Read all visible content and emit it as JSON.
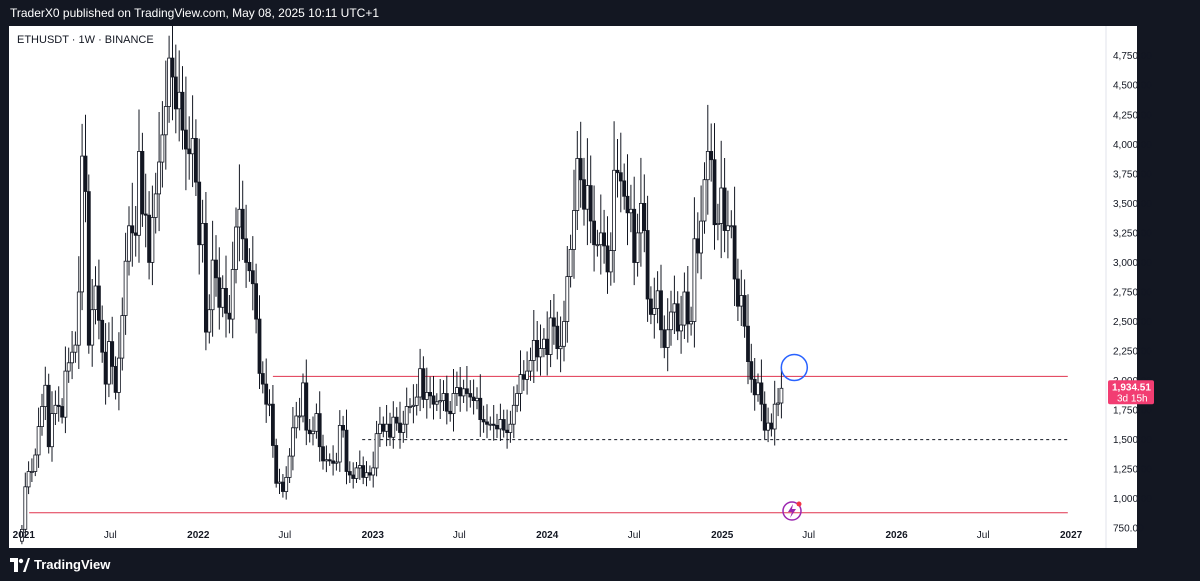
{
  "header": {
    "published": "TraderX0 published on TradingView.com, May 08, 2025 10:11 UTC+1"
  },
  "footer": {
    "brand": "TradingView",
    "logo_icon": "tradingview-logo-icon"
  },
  "colors": {
    "bull": "#131722",
    "bear": "#131722",
    "hline": "#e0344f",
    "dashed": "#131722",
    "circle": "#2962ff",
    "tag": "#f23d72",
    "bolt": "#9c27b0"
  },
  "chart_data": {
    "type": "candlestick",
    "symbol": "ETHUSDT · 1W · BINANCE",
    "ylim": [
      650,
      4900
    ],
    "y_ticks": [
      750,
      1000,
      1250,
      1500,
      1750,
      2000,
      2250,
      2500,
      2750,
      3000,
      3250,
      3500,
      3750,
      4000,
      4250,
      4500,
      4750
    ],
    "y_tick_labels": [
      "750.00",
      "1,000.00",
      "1,250.00",
      "1,500.00",
      "1,750.00",
      "2,000.00",
      "2,250.00",
      "2,500.00",
      "2,750.00",
      "3,000.00",
      "3,250.00",
      "3,500.00",
      "3,750.00",
      "4,000.00",
      "4,250.00",
      "4,500.00",
      "4,750.00"
    ],
    "x_ticks": [
      {
        "label": "2021",
        "date": "2021-01-01",
        "year": true
      },
      {
        "label": "Jul",
        "date": "2021-07-01",
        "year": false
      },
      {
        "label": "2022",
        "date": "2022-01-01",
        "year": true
      },
      {
        "label": "Jul",
        "date": "2022-07-01",
        "year": false
      },
      {
        "label": "2023",
        "date": "2023-01-01",
        "year": true
      },
      {
        "label": "Jul",
        "date": "2023-07-01",
        "year": false
      },
      {
        "label": "2024",
        "date": "2024-01-01",
        "year": true
      },
      {
        "label": "Jul",
        "date": "2024-07-01",
        "year": false
      },
      {
        "label": "2025",
        "date": "2025-01-01",
        "year": true
      },
      {
        "label": "Jul",
        "date": "2025-07-01",
        "year": false
      },
      {
        "label": "2026",
        "date": "2026-01-01",
        "year": true
      },
      {
        "label": "Jul",
        "date": "2026-07-01",
        "year": false
      },
      {
        "label": "2027",
        "date": "2027-01-01",
        "year": true
      }
    ],
    "x_range": [
      "2020-12-01",
      "2027-03-15"
    ],
    "current_price": 1934.51,
    "current_price_label": "1,934.51",
    "countdown": "3d 15h",
    "horizontal_lines": [
      {
        "name": "resistance",
        "y": 2035,
        "style": "solid",
        "x_start": "2022-06-06",
        "x_end": "2026-12-25"
      },
      {
        "name": "support-dashed",
        "y": 1500,
        "style": "dashed",
        "x_start": "2022-12-10",
        "x_end": "2026-12-25"
      },
      {
        "name": "bottom-support",
        "y": 880,
        "style": "solid",
        "x_start": "2021-01-12",
        "x_end": "2026-12-25"
      }
    ],
    "annotation_circle": {
      "date": "2025-06-01",
      "y": 2110
    },
    "closes": [
      [
        "2020-12-21",
        640
      ],
      [
        "2020-12-28",
        740
      ],
      [
        "2021-01-04",
        1100
      ],
      [
        "2021-01-11",
        1230
      ],
      [
        "2021-01-18",
        1230
      ],
      [
        "2021-01-25",
        1370
      ],
      [
        "2021-02-01",
        1610
      ],
      [
        "2021-02-08",
        1780
      ],
      [
        "2021-02-15",
        1960
      ],
      [
        "2021-02-22",
        1440
      ],
      [
        "2021-03-01",
        1720
      ],
      [
        "2021-03-08",
        1790
      ],
      [
        "2021-03-15",
        1780
      ],
      [
        "2021-03-22",
        1690
      ],
      [
        "2021-03-29",
        2080
      ],
      [
        "2021-04-05",
        2150
      ],
      [
        "2021-04-12",
        2240
      ],
      [
        "2021-04-19",
        2300
      ],
      [
        "2021-04-26",
        2750
      ],
      [
        "2021-05-03",
        3900
      ],
      [
        "2021-05-10",
        3600
      ],
      [
        "2021-05-17",
        2300
      ],
      [
        "2021-05-24",
        2600
      ],
      [
        "2021-05-31",
        2800
      ],
      [
        "2021-06-07",
        2510
      ],
      [
        "2021-06-14",
        2240
      ],
      [
        "2021-06-21",
        1970
      ],
      [
        "2021-06-28",
        2330
      ],
      [
        "2021-07-05",
        2120
      ],
      [
        "2021-07-12",
        1900
      ],
      [
        "2021-07-19",
        2190
      ],
      [
        "2021-07-26",
        2550
      ],
      [
        "2021-08-02",
        3010
      ],
      [
        "2021-08-09",
        3310
      ],
      [
        "2021-08-16",
        3250
      ],
      [
        "2021-08-23",
        3230
      ],
      [
        "2021-08-30",
        3940
      ],
      [
        "2021-09-06",
        3410
      ],
      [
        "2021-09-13",
        3400
      ],
      [
        "2021-09-20",
        3000
      ],
      [
        "2021-09-27",
        3380
      ],
      [
        "2021-10-04",
        3580
      ],
      [
        "2021-10-11",
        3850
      ],
      [
        "2021-10-18",
        4080
      ],
      [
        "2021-10-25",
        4320
      ],
      [
        "2021-11-01",
        4730
      ],
      [
        "2021-11-08",
        4570
      ],
      [
        "2021-11-15",
        4300
      ],
      [
        "2021-11-22",
        4440
      ],
      [
        "2021-11-29",
        4120
      ],
      [
        "2021-12-06",
        3960
      ],
      [
        "2021-12-13",
        3920
      ],
      [
        "2021-12-20",
        4050
      ],
      [
        "2021-12-27",
        3680
      ],
      [
        "2022-01-03",
        3150
      ],
      [
        "2022-01-10",
        3330
      ],
      [
        "2022-01-17",
        2410
      ],
      [
        "2022-01-24",
        2600
      ],
      [
        "2022-01-31",
        3020
      ],
      [
        "2022-02-07",
        2870
      ],
      [
        "2022-02-14",
        2620
      ],
      [
        "2022-02-21",
        2780
      ],
      [
        "2022-02-28",
        2570
      ],
      [
        "2022-03-07",
        2520
      ],
      [
        "2022-03-14",
        2940
      ],
      [
        "2022-03-21",
        3300
      ],
      [
        "2022-03-28",
        3450
      ],
      [
        "2022-04-04",
        3200
      ],
      [
        "2022-04-11",
        3000
      ],
      [
        "2022-04-18",
        2930
      ],
      [
        "2022-04-25",
        2820
      ],
      [
        "2022-05-02",
        2520
      ],
      [
        "2022-05-09",
        2060
      ],
      [
        "2022-05-16",
        1970
      ],
      [
        "2022-05-23",
        1800
      ],
      [
        "2022-05-30",
        1800
      ],
      [
        "2022-06-06",
        1450
      ],
      [
        "2022-06-13",
        1130
      ],
      [
        "2022-06-20",
        1140
      ],
      [
        "2022-06-27",
        1060
      ],
      [
        "2022-07-04",
        1180
      ],
      [
        "2022-07-11",
        1360
      ],
      [
        "2022-07-18",
        1600
      ],
      [
        "2022-07-25",
        1700
      ],
      [
        "2022-08-01",
        1700
      ],
      [
        "2022-08-08",
        1980
      ],
      [
        "2022-08-15",
        1580
      ],
      [
        "2022-08-22",
        1550
      ],
      [
        "2022-08-29",
        1570
      ],
      [
        "2022-09-05",
        1720
      ],
      [
        "2022-09-12",
        1440
      ],
      [
        "2022-09-19",
        1320
      ],
      [
        "2022-09-26",
        1330
      ],
      [
        "2022-10-03",
        1320
      ],
      [
        "2022-10-10",
        1300
      ],
      [
        "2022-10-17",
        1310
      ],
      [
        "2022-10-24",
        1620
      ],
      [
        "2022-10-31",
        1580
      ],
      [
        "2022-11-07",
        1230
      ],
      [
        "2022-11-14",
        1200
      ],
      [
        "2022-11-21",
        1170
      ],
      [
        "2022-11-28",
        1260
      ],
      [
        "2022-12-05",
        1280
      ],
      [
        "2022-12-12",
        1180
      ],
      [
        "2022-12-19",
        1220
      ],
      [
        "2022-12-26",
        1200
      ],
      [
        "2023-01-02",
        1260
      ],
      [
        "2023-01-09",
        1550
      ],
      [
        "2023-01-16",
        1630
      ],
      [
        "2023-01-23",
        1570
      ],
      [
        "2023-01-30",
        1630
      ],
      [
        "2023-02-06",
        1520
      ],
      [
        "2023-02-13",
        1690
      ],
      [
        "2023-02-20",
        1640
      ],
      [
        "2023-02-27",
        1560
      ],
      [
        "2023-03-06",
        1630
      ],
      [
        "2023-03-13",
        1780
      ],
      [
        "2023-03-20",
        1780
      ],
      [
        "2023-03-27",
        1790
      ],
      [
        "2023-04-03",
        1860
      ],
      [
        "2023-04-10",
        2100
      ],
      [
        "2023-04-17",
        1840
      ],
      [
        "2023-04-24",
        1900
      ],
      [
        "2023-05-01",
        1870
      ],
      [
        "2023-05-08",
        1800
      ],
      [
        "2023-05-15",
        1820
      ],
      [
        "2023-05-22",
        1830
      ],
      [
        "2023-05-29",
        1890
      ],
      [
        "2023-06-05",
        1740
      ],
      [
        "2023-06-12",
        1720
      ],
      [
        "2023-06-19",
        1890
      ],
      [
        "2023-06-26",
        1940
      ],
      [
        "2023-07-03",
        1870
      ],
      [
        "2023-07-10",
        1930
      ],
      [
        "2023-07-17",
        1890
      ],
      [
        "2023-07-24",
        1860
      ],
      [
        "2023-07-31",
        1830
      ],
      [
        "2023-08-07",
        1850
      ],
      [
        "2023-08-14",
        1670
      ],
      [
        "2023-08-21",
        1650
      ],
      [
        "2023-08-28",
        1630
      ],
      [
        "2023-09-04",
        1630
      ],
      [
        "2023-09-11",
        1620
      ],
      [
        "2023-09-18",
        1590
      ],
      [
        "2023-09-25",
        1670
      ],
      [
        "2023-10-02",
        1580
      ],
      [
        "2023-10-09",
        1560
      ],
      [
        "2023-10-16",
        1630
      ],
      [
        "2023-10-23",
        1790
      ],
      [
        "2023-10-30",
        1890
      ],
      [
        "2023-11-06",
        2050
      ],
      [
        "2023-11-13",
        2010
      ],
      [
        "2023-11-20",
        2080
      ],
      [
        "2023-11-27",
        2170
      ],
      [
        "2023-12-04",
        2340
      ],
      [
        "2023-12-11",
        2200
      ],
      [
        "2023-12-18",
        2270
      ],
      [
        "2023-12-25",
        2350
      ],
      [
        "2024-01-01",
        2220
      ],
      [
        "2024-01-08",
        2530
      ],
      [
        "2024-01-15",
        2460
      ],
      [
        "2024-01-22",
        2270
      ],
      [
        "2024-01-29",
        2290
      ],
      [
        "2024-02-05",
        2500
      ],
      [
        "2024-02-12",
        2880
      ],
      [
        "2024-02-19",
        3110
      ],
      [
        "2024-02-26",
        3440
      ],
      [
        "2024-03-04",
        3880
      ],
      [
        "2024-03-11",
        3700
      ],
      [
        "2024-03-18",
        3450
      ],
      [
        "2024-03-25",
        3650
      ],
      [
        "2024-04-01",
        3350
      ],
      [
        "2024-04-08",
        3150
      ],
      [
        "2024-04-15",
        3150
      ],
      [
        "2024-04-22",
        3250
      ],
      [
        "2024-04-29",
        3140
      ],
      [
        "2024-05-06",
        2920
      ],
      [
        "2024-05-13",
        3100
      ],
      [
        "2024-05-20",
        3780
      ],
      [
        "2024-05-27",
        3760
      ],
      [
        "2024-06-03",
        3690
      ],
      [
        "2024-06-10",
        3560
      ],
      [
        "2024-06-17",
        3420
      ],
      [
        "2024-06-24",
        3450
      ],
      [
        "2024-07-01",
        3000
      ],
      [
        "2024-07-08",
        3250
      ],
      [
        "2024-07-15",
        3500
      ],
      [
        "2024-07-22",
        3270
      ],
      [
        "2024-07-29",
        2690
      ],
      [
        "2024-08-05",
        2560
      ],
      [
        "2024-08-12",
        2610
      ],
      [
        "2024-08-19",
        2760
      ],
      [
        "2024-08-26",
        2430
      ],
      [
        "2024-09-02",
        2280
      ],
      [
        "2024-09-09",
        2430
      ],
      [
        "2024-09-16",
        2580
      ],
      [
        "2024-09-23",
        2650
      ],
      [
        "2024-09-30",
        2420
      ],
      [
        "2024-10-07",
        2470
      ],
      [
        "2024-10-14",
        2750
      ],
      [
        "2024-10-21",
        2480
      ],
      [
        "2024-10-28",
        2500
      ],
      [
        "2024-11-04",
        3200
      ],
      [
        "2024-11-11",
        3080
      ],
      [
        "2024-11-18",
        3350
      ],
      [
        "2024-11-25",
        3700
      ],
      [
        "2024-12-02",
        3940
      ],
      [
        "2024-12-09",
        3870
      ],
      [
        "2024-12-16",
        3320
      ],
      [
        "2024-12-23",
        3330
      ],
      [
        "2024-12-30",
        3630
      ],
      [
        "2025-01-06",
        3270
      ],
      [
        "2025-01-13",
        3310
      ],
      [
        "2025-01-20",
        3310
      ],
      [
        "2025-01-27",
        2860
      ],
      [
        "2025-02-03",
        2630
      ],
      [
        "2025-02-10",
        2720
      ],
      [
        "2025-02-17",
        2460
      ],
      [
        "2025-02-24",
        2160
      ],
      [
        "2025-03-03",
        2010
      ],
      [
        "2025-03-10",
        1880
      ],
      [
        "2025-03-17",
        1980
      ],
      [
        "2025-03-24",
        1800
      ],
      [
        "2025-03-31",
        1580
      ],
      [
        "2025-04-07",
        1640
      ],
      [
        "2025-04-14",
        1590
      ],
      [
        "2025-04-21",
        1800
      ],
      [
        "2025-04-28",
        1810
      ],
      [
        "2025-05-05",
        1934.51
      ]
    ]
  }
}
